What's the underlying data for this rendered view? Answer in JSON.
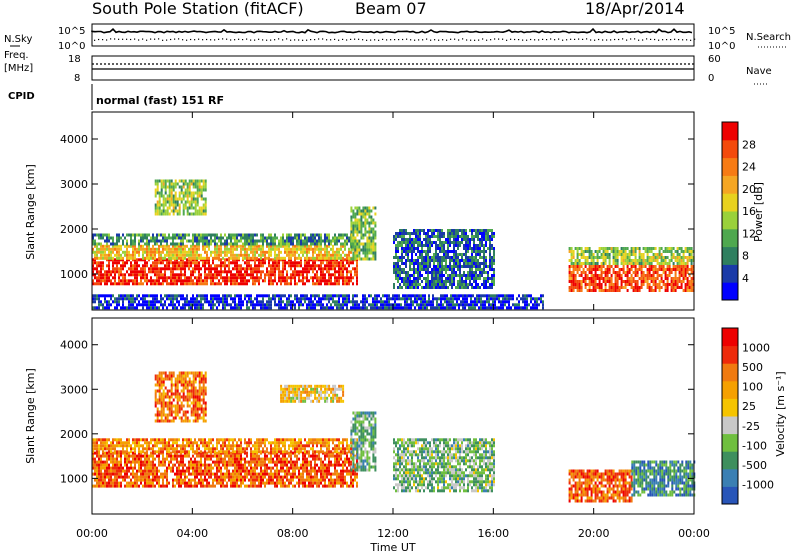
{
  "header": {
    "title": "South Pole Station (fitACF)",
    "beam": "Beam 07",
    "date": "18/Apr/2014"
  },
  "noise_panel": {
    "left_label": "N.Sky",
    "right_label": "N.Search",
    "top_tick_left": "10^5",
    "bottom_tick_left": "10^0",
    "top_tick_right": "10^5",
    "bottom_tick_right": "10^0"
  },
  "freq_panel": {
    "left_label_1": "Freq.",
    "left_label_2": "[MHz]",
    "top_tick_left": "18",
    "bottom_tick_left": "8",
    "right_label": "Nave",
    "top_tick_right": "60",
    "bottom_tick_right": "0"
  },
  "cpid": {
    "label": "CPID",
    "text": "normal (fast) 151 RF"
  },
  "chart_data": [
    {
      "type": "heatmap",
      "name": "power",
      "ylabel": "Slant Range [km]",
      "yticks": [
        "1000",
        "2000",
        "3000",
        "4000"
      ],
      "ylim": [
        200,
        4600
      ],
      "xlim": [
        0,
        24
      ],
      "colorbar": {
        "label": "Power [dB]",
        "ticks": [
          "4",
          "8",
          "12",
          "16",
          "20",
          "24",
          "28"
        ],
        "range": [
          0,
          30
        ],
        "colors": [
          "#0000ff",
          "#1a3aa8",
          "#2f7f5f",
          "#4fa84f",
          "#9ad13a",
          "#e8d21f",
          "#f5a623",
          "#f77b14",
          "#f44a0c",
          "#ee0000"
        ]
      },
      "regions": [
        {
          "t0": 0.0,
          "t1": 10.6,
          "r0": 800,
          "r1": 1350,
          "level": 0.92
        },
        {
          "t0": 0.0,
          "t1": 10.6,
          "r0": 1350,
          "r1": 1650,
          "level": 0.6
        },
        {
          "t0": 0.0,
          "t1": 10.6,
          "r0": 1650,
          "r1": 1900,
          "level": 0.3
        },
        {
          "t0": 2.5,
          "t1": 4.5,
          "r0": 2300,
          "r1": 3100,
          "level": 0.45
        },
        {
          "t0": 10.3,
          "t1": 11.3,
          "r0": 1300,
          "r1": 2500,
          "level": 0.4
        },
        {
          "t0": 12.0,
          "t1": 16.0,
          "r0": 700,
          "r1": 2000,
          "level": 0.2
        },
        {
          "t0": 19.0,
          "t1": 24.0,
          "r0": 600,
          "r1": 1200,
          "level": 0.85
        },
        {
          "t0": 19.0,
          "t1": 24.0,
          "r0": 1200,
          "r1": 1600,
          "level": 0.45
        },
        {
          "t0": 0.0,
          "t1": 18.0,
          "r0": 250,
          "r1": 550,
          "level": 0.1
        }
      ]
    },
    {
      "type": "heatmap",
      "name": "velocity",
      "ylabel": "Slant Range [km]",
      "yticks": [
        "1000",
        "2000",
        "3000",
        "4000"
      ],
      "ylim": [
        200,
        4600
      ],
      "xlim": [
        0,
        24
      ],
      "xticks": [
        "00:00",
        "04:00",
        "08:00",
        "12:00",
        "16:00",
        "20:00",
        "00:00"
      ],
      "xlabel": "Time UT",
      "colorbar": {
        "label": "Velocity [m s⁻¹]",
        "ticks": [
          "1000",
          "500",
          "100",
          "25",
          "-25",
          "-100",
          "-500",
          "-1000"
        ],
        "colors": [
          "#2855b8",
          "#3a7fb3",
          "#3e8f5e",
          "#6fbf3f",
          "#c8c8c8",
          "#f5c400",
          "#f5a000",
          "#f07a10",
          "#ee2a0a",
          "#ee0000"
        ]
      },
      "regions": [
        {
          "t0": 0.0,
          "t1": 10.6,
          "r0": 800,
          "r1": 1600,
          "level": 0.8
        },
        {
          "t0": 0.0,
          "t1": 10.6,
          "r0": 1600,
          "r1": 1900,
          "level": 0.7
        },
        {
          "t0": 2.5,
          "t1": 4.5,
          "r0": 2300,
          "r1": 3400,
          "level": 0.75
        },
        {
          "t0": 10.3,
          "t1": 11.3,
          "r0": 1200,
          "r1": 2500,
          "level": 0.3
        },
        {
          "t0": 12.0,
          "t1": 16.0,
          "r0": 700,
          "r1": 1900,
          "level": 0.35
        },
        {
          "t0": 7.5,
          "t1": 10.0,
          "r0": 2700,
          "r1": 3100,
          "level": 0.55
        },
        {
          "t0": 19.0,
          "t1": 21.5,
          "r0": 500,
          "r1": 1200,
          "level": 0.78
        },
        {
          "t0": 21.5,
          "t1": 24.0,
          "r0": 600,
          "r1": 1400,
          "level": 0.2
        }
      ]
    }
  ]
}
